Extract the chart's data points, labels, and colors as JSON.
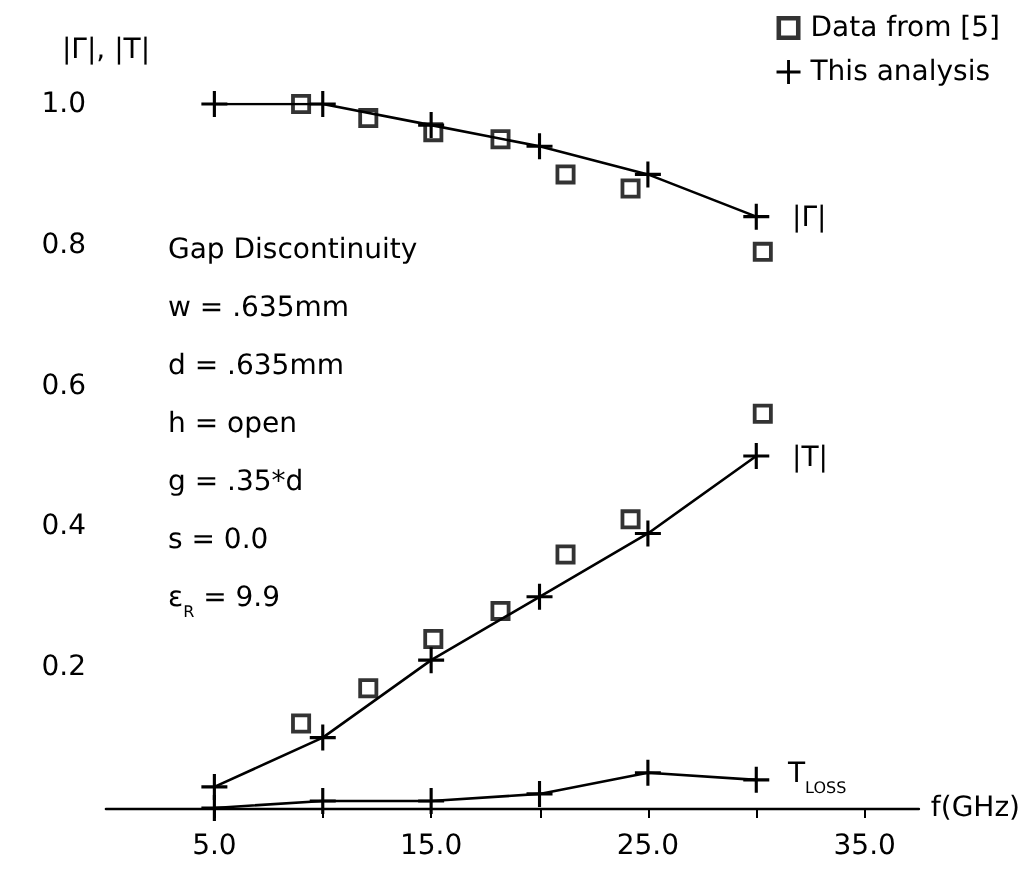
{
  "chart_data": {
    "type": "line",
    "xlabel": "f(GHz)",
    "ylabel": "|Γ|, |T|",
    "xlim": [
      0,
      37.5
    ],
    "xticks": [
      {
        "value": 5,
        "label": "5.0"
      },
      {
        "value": 10,
        "label": null
      },
      {
        "value": 15,
        "label": "15.0"
      },
      {
        "value": 20,
        "label": null
      },
      {
        "value": 25,
        "label": "25.0"
      },
      {
        "value": 30,
        "label": null
      },
      {
        "value": 35,
        "label": "35.0"
      }
    ],
    "ylim": [
      0,
      1.0
    ],
    "yticks": [
      0.2,
      0.4,
      0.6,
      0.8,
      {
        "value": 1,
        "label": "1.0"
      }
    ],
    "grid": false,
    "legend": "top right",
    "series": [
      {
        "name": "Data from [5]",
        "type": "scatter",
        "marker": "square",
        "color": "#000000",
        "x": [
          9.0,
          12.1,
          15.1,
          18.2,
          21.2,
          24.2,
          30.3
        ],
        "values": [
          1.0,
          0.98,
          0.96,
          0.95,
          0.9,
          0.88,
          0.79
        ]
      },
      {
        "type": "scatter",
        "marker": "square",
        "color": "#000000",
        "x": [
          9.0,
          12.1,
          15.1,
          18.2,
          21.2,
          24.2,
          30.3
        ],
        "values": [
          0.12,
          0.17,
          0.24,
          0.28,
          0.36,
          0.41,
          0.56
        ]
      },
      {
        "name": "This analysis",
        "marker": "cross",
        "line_style": "solid",
        "color": "#000000",
        "x": [
          5,
          10,
          15,
          20,
          25,
          30
        ],
        "values": [
          1.0,
          1.0,
          0.97,
          0.94,
          0.9,
          0.84
        ]
      },
      {
        "marker": "cross",
        "line_style": "solid",
        "color": "#000000",
        "x": [
          5,
          10,
          15,
          20,
          25,
          30
        ],
        "values": [
          0.03,
          0.1,
          0.21,
          0.3,
          0.39,
          0.5
        ]
      },
      {
        "marker": "cross",
        "line_style": "solid",
        "color": "#000000",
        "x": [
          5,
          10,
          15,
          20,
          25,
          30
        ],
        "values": [
          0.0,
          0.01,
          0.01,
          0.02,
          0.05,
          0.04
        ]
      }
    ],
    "annotations": [
      "|Γ|",
      "|T|",
      "T$_{LOSS}$",
      "Gap Discontinuity",
      "w = .635mm",
      "d = .635mm",
      "h = open",
      "g = .35*d",
      "s = 0.0",
      "ε$_{R}$ = 9.9"
    ]
  }
}
